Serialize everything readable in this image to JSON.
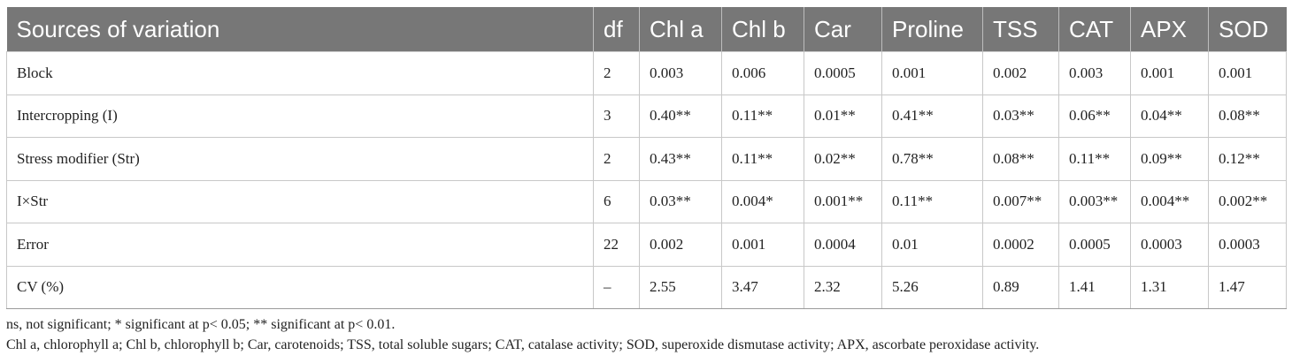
{
  "table": {
    "headers": [
      "Sources of variation",
      "df",
      "Chl a",
      "Chl b",
      "Car",
      "Proline",
      "TSS",
      "CAT",
      "APX",
      "SOD"
    ],
    "rows": [
      [
        "Block",
        "2",
        "0.003",
        "0.006",
        "0.0005",
        "0.001",
        "0.002",
        "0.003",
        "0.001",
        "0.001"
      ],
      [
        "Intercropping (I)",
        "3",
        "0.40**",
        "0.11**",
        "0.01**",
        "0.41**",
        "0.03**",
        "0.06**",
        "0.04**",
        "0.08**"
      ],
      [
        "Stress modifier (Str)",
        "2",
        "0.43**",
        "0.11**",
        "0.02**",
        "0.78**",
        "0.08**",
        "0.11**",
        "0.09**",
        "0.12**"
      ],
      [
        "I×Str",
        "6",
        "0.03**",
        "0.004*",
        "0.001**",
        "0.11**",
        "0.007**",
        "0.003**",
        "0.004**",
        "0.002**"
      ],
      [
        "Error",
        "22",
        "0.002",
        "0.001",
        "0.0004",
        "0.01",
        "0.0002",
        "0.0005",
        "0.0003",
        "0.0003"
      ],
      [
        "CV (%)",
        "–",
        "2.55",
        "3.47",
        "2.32",
        "5.26",
        "0.89",
        "1.41",
        "1.31",
        "1.47"
      ]
    ]
  },
  "footnotes": {
    "significance": "ns, not significant; * significant at p< 0.05; ** significant at p< 0.01.",
    "abbreviations": "Chl a, chlorophyll a; Chl b, chlorophyll b; Car, carotenoids; TSS, total soluble sugars; CAT, catalase activity; SOD, superoxide dismutase activity; APX, ascorbate peroxidase activity."
  }
}
